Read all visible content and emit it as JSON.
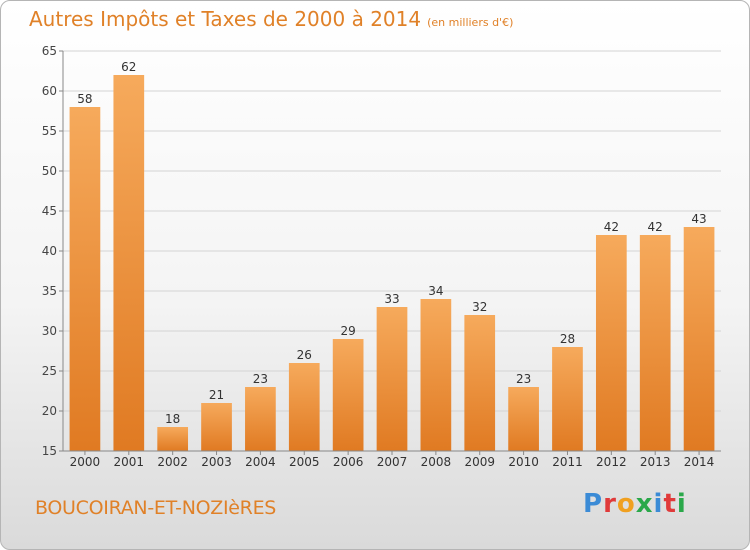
{
  "title": "Autres Impôts et Taxes de 2000 à 2014",
  "subtitle": "(en milliers d'€)",
  "commune": "BOUCOIRAN-ET-NOZIèRES",
  "logo": {
    "letters": [
      "P",
      "r",
      "o",
      "x",
      "i",
      "t",
      "i"
    ],
    "colors": [
      "#3b8bd6",
      "#e03a3a",
      "#f0a020",
      "#2aa84a",
      "#3b8bd6",
      "#e03a3a",
      "#2aa84a"
    ]
  },
  "colors": {
    "bar_light": "#f6aa5c",
    "bar_dark": "#e07a22",
    "text_accent": "#e08128"
  },
  "chart_data": {
    "type": "bar",
    "categories": [
      "2000",
      "2001",
      "2002",
      "2003",
      "2004",
      "2005",
      "2006",
      "2007",
      "2008",
      "2009",
      "2010",
      "2011",
      "2012",
      "2013",
      "2014"
    ],
    "values": [
      58,
      62,
      18,
      21,
      23,
      26,
      29,
      33,
      34,
      32,
      23,
      28,
      42,
      42,
      43
    ],
    "yticks": [
      15,
      20,
      25,
      30,
      35,
      40,
      45,
      50,
      55,
      60,
      65
    ],
    "ylim": [
      15,
      65
    ],
    "grid": true
  }
}
